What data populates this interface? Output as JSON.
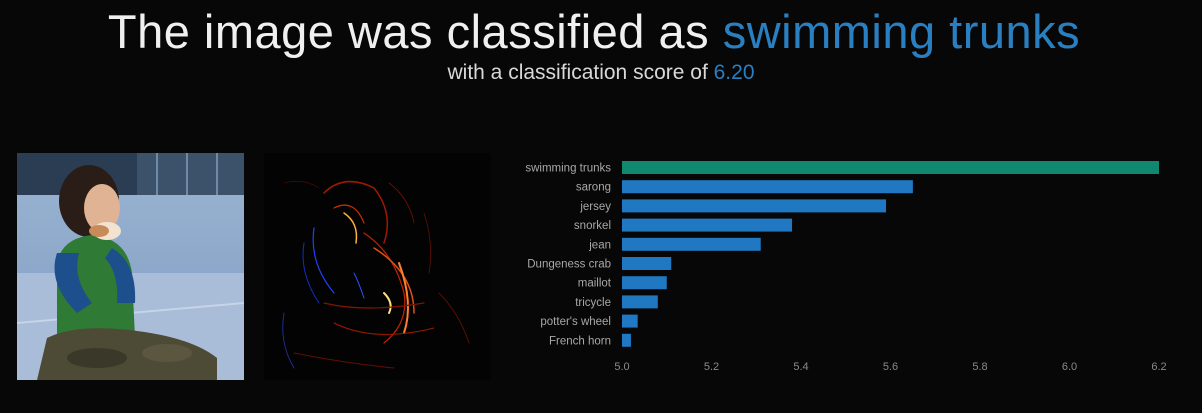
{
  "header": {
    "title_prefix": "The image was classified as",
    "predicted_class": "swimming trunks",
    "subtitle_prefix": "with a classification score of",
    "score": "6.20"
  },
  "colors": {
    "accent": "#2a7fc1",
    "top_bar": "#10876f",
    "bar": "#1f78c1",
    "background": "#070707"
  },
  "images": {
    "input_photo": "child-eating-photo",
    "saliency_map": "saliency-heatmap"
  },
  "chart_data": {
    "type": "bar",
    "orientation": "horizontal",
    "categories": [
      "swimming trunks",
      "sarong",
      "jersey",
      "snorkel",
      "jean",
      "Dungeness crab",
      "maillot",
      "tricycle",
      "potter's wheel",
      "French horn"
    ],
    "values": [
      6.2,
      5.65,
      5.59,
      5.38,
      5.31,
      5.11,
      5.1,
      5.08,
      5.035,
      5.02
    ],
    "xlim": [
      5.0,
      6.2
    ],
    "xticks": [
      "5.0",
      "5.2",
      "5.4",
      "5.6",
      "5.8",
      "6.0",
      "6.2"
    ],
    "highlight_index": 0,
    "grid": false,
    "title": "",
    "xlabel": "",
    "ylabel": ""
  }
}
